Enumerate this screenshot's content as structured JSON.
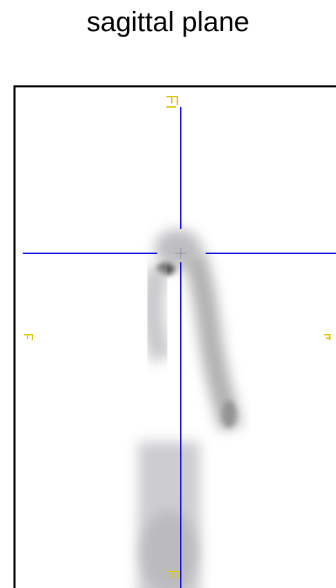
{
  "header": {
    "title": "sagittal plane"
  }
}
